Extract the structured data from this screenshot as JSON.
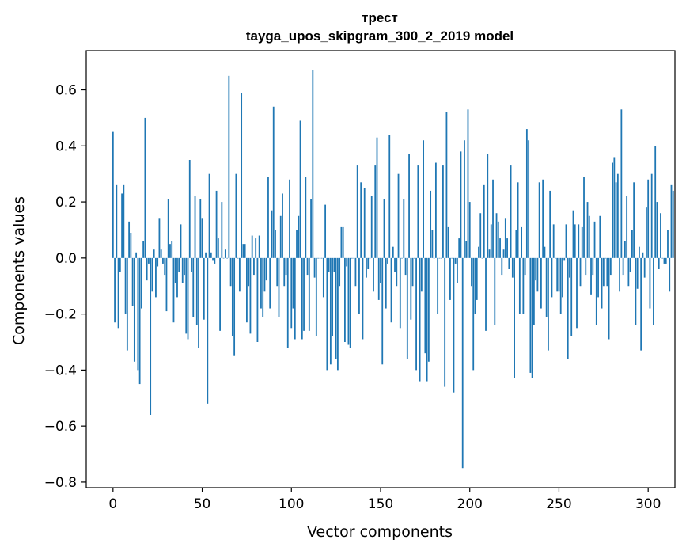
{
  "chart_data": {
    "type": "bar",
    "title": "трест",
    "subtitle": "tayga_upos_skipgram_300_2_2019 model",
    "xlabel": "Vector components",
    "ylabel": "Components values",
    "xlim": [
      -15,
      315
    ],
    "ylim": [
      -0.82,
      0.74
    ],
    "xticks": [
      0,
      50,
      100,
      150,
      200,
      250,
      300
    ],
    "yticks": [
      -0.8,
      -0.6,
      -0.4,
      -0.2,
      0.0,
      0.2,
      0.4,
      0.6
    ],
    "ytick_labels": [
      "−0.8",
      "−0.6",
      "−0.4",
      "−0.2",
      "0.0",
      "0.2",
      "0.4",
      "0.6"
    ],
    "grid": false,
    "bar_color": "#1f77b4",
    "x_start": 0,
    "values": [
      0.45,
      -0.23,
      0.26,
      -0.25,
      -0.05,
      0.23,
      0.26,
      -0.2,
      -0.33,
      0.13,
      0.09,
      -0.17,
      -0.37,
      0.02,
      -0.4,
      -0.45,
      -0.18,
      0.06,
      0.5,
      -0.08,
      -0.02,
      -0.56,
      -0.12,
      0.03,
      -0.14,
      -0.03,
      0.14,
      0.03,
      -0.02,
      -0.06,
      -0.19,
      0.21,
      0.05,
      0.06,
      -0.23,
      -0.09,
      -0.14,
      -0.05,
      0.12,
      -0.09,
      -0.06,
      -0.27,
      -0.29,
      0.35,
      -0.05,
      -0.21,
      0.22,
      -0.24,
      -0.32,
      0.21,
      0.14,
      -0.22,
      0.02,
      -0.52,
      0.3,
      0.02,
      -0.01,
      -0.02,
      0.24,
      0.07,
      -0.26,
      0.2,
      0.0,
      0.03,
      0.0,
      0.65,
      -0.1,
      -0.28,
      -0.35,
      0.3,
      0.0,
      -0.12,
      0.59,
      0.05,
      0.05,
      -0.23,
      -0.1,
      -0.27,
      0.08,
      -0.06,
      0.07,
      -0.3,
      0.08,
      -0.18,
      -0.21,
      -0.12,
      -0.08,
      0.29,
      -0.18,
      0.17,
      0.54,
      0.1,
      -0.1,
      -0.21,
      0.15,
      0.23,
      -0.1,
      -0.06,
      -0.32,
      0.28,
      -0.25,
      -0.18,
      -0.29,
      0.1,
      0.15,
      0.49,
      -0.29,
      -0.26,
      0.29,
      -0.06,
      -0.26,
      0.21,
      0.67,
      -0.07,
      -0.28,
      0.0,
      0.0,
      0.0,
      -0.14,
      0.19,
      -0.4,
      -0.05,
      -0.38,
      -0.28,
      -0.05,
      -0.36,
      -0.4,
      -0.1,
      0.11,
      0.11,
      -0.3,
      -0.03,
      -0.31,
      -0.32,
      0.0,
      0.0,
      -0.1,
      0.33,
      -0.2,
      0.27,
      -0.29,
      0.25,
      -0.07,
      -0.04,
      0.0,
      0.22,
      -0.12,
      0.33,
      0.43,
      -0.15,
      -0.09,
      -0.38,
      0.21,
      -0.18,
      -0.02,
      0.44,
      -0.23,
      0.04,
      -0.05,
      -0.1,
      0.3,
      -0.25,
      0.0,
      0.21,
      -0.06,
      -0.36,
      0.37,
      -0.22,
      -0.1,
      0.0,
      -0.4,
      0.33,
      -0.44,
      -0.12,
      0.42,
      -0.34,
      -0.44,
      -0.37,
      0.24,
      0.1,
      0.0,
      0.34,
      -0.2,
      0.0,
      0.0,
      0.33,
      -0.46,
      0.52,
      0.11,
      -0.15,
      0.0,
      -0.48,
      -0.02,
      -0.09,
      0.07,
      0.38,
      -0.75,
      0.42,
      0.06,
      0.53,
      0.2,
      -0.1,
      -0.4,
      -0.2,
      -0.15,
      0.04,
      0.16,
      0.0,
      0.26,
      -0.26,
      0.37,
      0.03,
      0.12,
      0.28,
      -0.24,
      0.16,
      0.13,
      0.07,
      -0.06,
      0.03,
      0.14,
      0.07,
      -0.04,
      0.33,
      -0.07,
      -0.43,
      0.1,
      0.27,
      -0.2,
      0.11,
      -0.2,
      -0.06,
      0.46,
      0.42,
      -0.41,
      -0.43,
      -0.24,
      -0.08,
      -0.12,
      0.27,
      -0.18,
      0.28,
      0.04,
      -0.21,
      -0.33,
      0.24,
      -0.14,
      0.12,
      0.0,
      -0.12,
      -0.12,
      -0.2,
      -0.14,
      -0.01,
      0.12,
      -0.36,
      -0.07,
      -0.28,
      0.17,
      0.12,
      -0.25,
      0.12,
      -0.1,
      0.11,
      0.29,
      -0.06,
      0.2,
      0.15,
      -0.13,
      -0.06,
      0.13,
      -0.24,
      -0.14,
      0.15,
      -0.18,
      -0.1,
      0.0,
      -0.1,
      -0.29,
      -0.06,
      0.34,
      0.36,
      0.27,
      0.3,
      -0.12,
      0.53,
      -0.06,
      0.06,
      0.22,
      -0.1,
      -0.05,
      0.1,
      0.27,
      -0.24,
      -0.11,
      0.04,
      -0.33,
      0.02,
      -0.07,
      0.18,
      0.28,
      -0.18,
      0.3,
      -0.24,
      0.4,
      0.2,
      -0.04,
      0.16,
      0.0,
      -0.02,
      -0.02,
      0.1,
      -0.12,
      0.26,
      0.24
    ]
  }
}
